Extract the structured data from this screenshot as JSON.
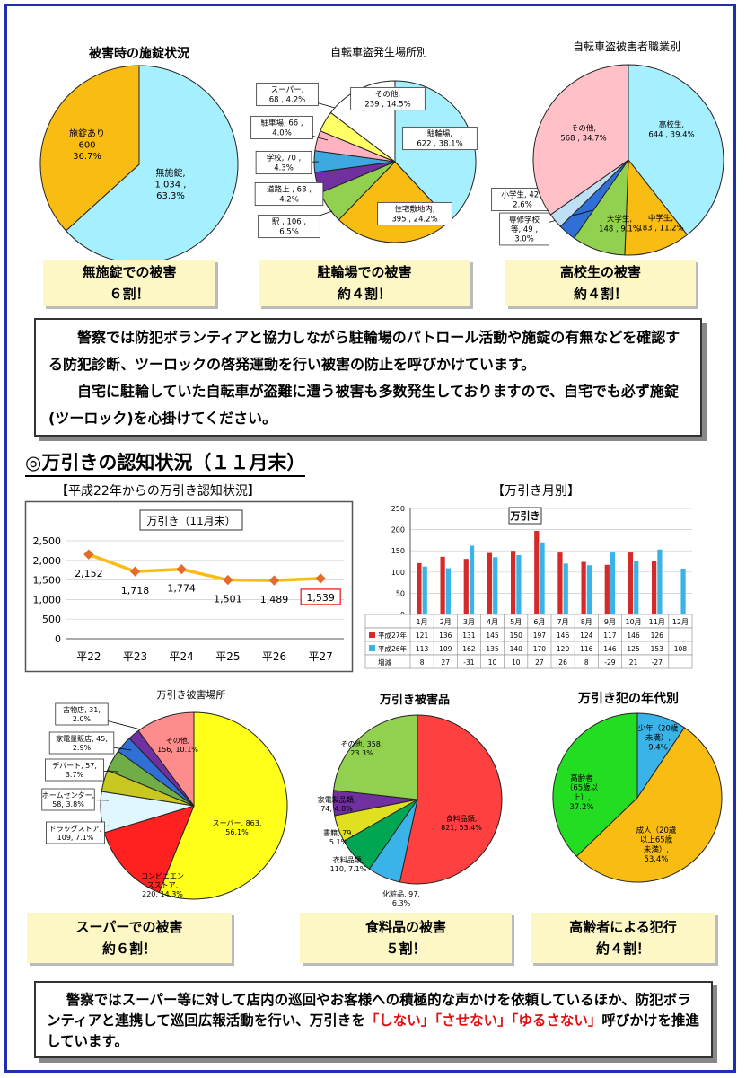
{
  "colors": {
    "frame": "#1f2fb0",
    "highlight_box": "#fdf7c6"
  },
  "bicycle": {
    "lock_chart": {
      "title": "被害時の施錠状況",
      "slices": [
        {
          "label": "無施錠,\n1,034 ,\n63.3%",
          "value": 1034,
          "color": "#a6efff"
        },
        {
          "label": "施錠あり\n600\n36.7%",
          "value": 600,
          "color": "#f8bc12"
        }
      ]
    },
    "place_chart": {
      "title": "自転車盗発生場所別",
      "slices": [
        {
          "label": "駐輪場,\n622 , 38.1%",
          "value": 622,
          "color": "#a6efff"
        },
        {
          "label": "住宅敷地内,\n395 , 24.2%",
          "value": 395,
          "color": "#f8bc12"
        },
        {
          "label": "駅 , 106 ,\n6.5%",
          "value": 106,
          "color": "#92d050"
        },
        {
          "label": "道路上 , 68 ,\n4.2%",
          "value": 68,
          "color": "#7030a0"
        },
        {
          "label": "学校, 70 ,\n4.3%",
          "value": 70,
          "color": "#3ea8e0"
        },
        {
          "label": "駐車場, 66 ,\n4.0%",
          "value": 66,
          "color": "#ffb3c0"
        },
        {
          "label": "スーパー,\n68 , 4.2%",
          "value": 68,
          "color": "#ffff66"
        },
        {
          "label": "その他,\n239 , 14.5%",
          "value": 239,
          "color": "#ffffff"
        }
      ]
    },
    "job_chart": {
      "title": "自転車盗被害者職業別",
      "slices": [
        {
          "label": "高校生,\n644 , 39.4%",
          "value": 644,
          "color": "#a6efff"
        },
        {
          "label": "中学生,\n183 , 11.2%",
          "value": 183,
          "color": "#f8bc12"
        },
        {
          "label": "大学生,\n148 , 9.1%",
          "value": 148,
          "color": "#92d050"
        },
        {
          "label": "専修学校\n等, 49 ,\n3.0%",
          "value": 49,
          "color": "#2f6fd6"
        },
        {
          "label": "小学生, 42 ,\n2.6%",
          "value": 42,
          "color": "#bde0f5"
        },
        {
          "label": "その他,\n568 , 34.7%",
          "value": 568,
          "color": "#ffc0c8"
        }
      ]
    },
    "summaries": [
      {
        "line1": "無施錠での被害",
        "line2": "６割！"
      },
      {
        "line1": "駐輪場での被害",
        "line2": "約４割！"
      },
      {
        "line1": "高校生の被害",
        "line2": "約４割！"
      }
    ],
    "notice": {
      "p1": "警察では防犯ボランティアと協力しながら駐輪場のパトロール活動や施錠の有無などを確認する防犯診断、ツーロックの啓発運動を行い被害の防止を呼びかけています。",
      "p2": "自宅に駐輪していた自転車が盗難に遭う被害も多数発生しておりますので、自宅でも必ず施錠(ツーロック)を心掛けてください。"
    }
  },
  "shoplifting": {
    "section_title": "◎万引きの認知状況（１１月末）",
    "trend": {
      "caption": "【平成22年からの万引き認知状況】",
      "chart_title": "万引き（11月末）",
      "yticks": [
        "2,500",
        "2,000",
        "1,500",
        "1,000",
        "500",
        "0"
      ],
      "categories": [
        "平22",
        "平23",
        "平24",
        "平25",
        "平26",
        "平27"
      ],
      "values": [
        2152,
        1718,
        1774,
        1501,
        1489,
        1539
      ],
      "value_labels": [
        "2,152",
        "1,718",
        "1,774",
        "1,501",
        "1,489",
        "1,539"
      ]
    },
    "monthly": {
      "caption": "【万引き月別】",
      "chart_title": "万引き",
      "yticks": [
        "250",
        "200",
        "150",
        "100",
        "50",
        "0"
      ],
      "months": [
        "1月",
        "2月",
        "3月",
        "4月",
        "5月",
        "6月",
        "7月",
        "8月",
        "9月",
        "10月",
        "11月",
        "12月"
      ],
      "series": [
        {
          "name": "平成27年",
          "color": "#d42a2a",
          "values": [
            121,
            136,
            131,
            145,
            150,
            197,
            146,
            124,
            117,
            146,
            126,
            null
          ],
          "labels": [
            "121",
            "136",
            "131",
            "145",
            "150",
            "197",
            "146",
            "124",
            "117",
            "146",
            "126",
            ""
          ]
        },
        {
          "name": "平成26年",
          "color": "#3ab4e8",
          "values": [
            113,
            109,
            162,
            135,
            140,
            170,
            120,
            116,
            146,
            125,
            153,
            108
          ],
          "labels": [
            "113",
            "109",
            "162",
            "135",
            "140",
            "170",
            "120",
            "116",
            "146",
            "125",
            "153",
            "108"
          ]
        }
      ],
      "diff_name": "増減",
      "diff": [
        "8",
        "27",
        "-31",
        "10",
        "10",
        "27",
        "26",
        "8",
        "-29",
        "21",
        "-27",
        ""
      ]
    },
    "place_chart": {
      "title": "万引き被害場所",
      "slices": [
        {
          "label": "スーパー, 863,\n56.1%",
          "value": 863,
          "color": "#ffff1a"
        },
        {
          "label": "コンビニエン\nスストア,\n220, 14.3%",
          "value": 220,
          "color": "#ff2020"
        },
        {
          "label": "ドラッグストア,\n109, 7.1%",
          "value": 109,
          "color": "#dff6ff"
        },
        {
          "label": "ホームセンター,\n58, 3.8%",
          "value": 58,
          "color": "#c8c820"
        },
        {
          "label": "デパート, 57,\n3.7%",
          "value": 57,
          "color": "#70ad47"
        },
        {
          "label": "家電量販店, 45,\n2.9%",
          "value": 45,
          "color": "#2f6fd6"
        },
        {
          "label": "古物店, 31,\n2.0%",
          "value": 31,
          "color": "#7030a0"
        },
        {
          "label": "その他,\n156, 10.1%",
          "value": 156,
          "color": "#ff8c8c"
        }
      ]
    },
    "goods_chart": {
      "title": "万引き被害品",
      "slices": [
        {
          "label": "食料品類,\n821, 53.4%",
          "value": 821,
          "color": "#ff4040"
        },
        {
          "label": "化粧品, 97,\n6.3%",
          "value": 97,
          "color": "#3ab4e8"
        },
        {
          "label": "衣料品類,\n110, 7.1%",
          "value": 110,
          "color": "#00a651"
        },
        {
          "label": "書籍, 79,\n5.1%",
          "value": 79,
          "color": "#e0e020"
        },
        {
          "label": "家電製品類,\n74, 4.8%",
          "value": 74,
          "color": "#7030a0"
        },
        {
          "label": "その他, 358,\n23.3%",
          "value": 358,
          "color": "#92d050"
        }
      ]
    },
    "age_chart": {
      "title": "万引き犯の年代別",
      "slices": [
        {
          "label": "少年（20歳\n未満）,\n9.4%",
          "value": 9.4,
          "color": "#3ab4e8"
        },
        {
          "label": "成人（20歳\n以上65歳\n未満）,\n53.4%",
          "value": 53.4,
          "color": "#f8bc12"
        },
        {
          "label": "高齢者\n（65歳以\n上）,\n37.2%",
          "value": 37.2,
          "color": "#22dd22"
        }
      ]
    },
    "summaries": [
      {
        "line1": "スーパーでの被害",
        "line2": "約６割！"
      },
      {
        "line1": "食料品の被害",
        "line2": "５割！"
      },
      {
        "line1": "高齢者による犯行",
        "line2": "約４割！"
      }
    ],
    "notice": {
      "pre": "警察ではスーパー等に対して店内の巡回やお客様への積極的な声かけを依頼しているほか、防犯ボランティアと連携して巡回広報活動を行い、万引きを",
      "q1": "「しない」",
      "q2": "「させない」",
      "q3": "「ゆるさない」",
      "post": "呼びかけを推進しています。"
    }
  }
}
